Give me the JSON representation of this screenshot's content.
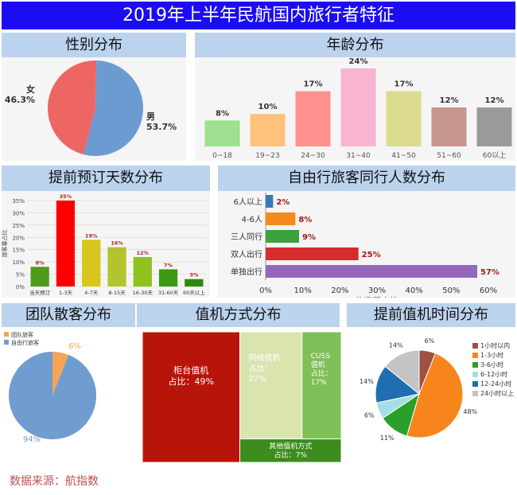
{
  "title": "2019年上半年民航国内旅行者特征",
  "source": "数据来源：航指数",
  "colors": {
    "title_bar": "#1c0cf2",
    "panel_header": "#bcd3ee"
  },
  "chart_data": [
    {
      "id": "gender",
      "panel_title": "性别分布",
      "type": "pie",
      "slices": [
        {
          "label": "女",
          "value": 46.3,
          "display": "46.3%",
          "color": "#ed6663"
        },
        {
          "label": "男",
          "value": 53.7,
          "display": "53.7%",
          "color": "#6c9bd2"
        }
      ]
    },
    {
      "id": "age",
      "panel_title": "年龄分布",
      "type": "bar",
      "categories": [
        "0~18",
        "19~23",
        "24~30",
        "31~40",
        "41~50",
        "51~60",
        "60以上"
      ],
      "values": [
        8,
        10,
        17,
        24,
        17,
        12,
        12
      ],
      "value_labels": [
        "8%",
        "10%",
        "17%",
        "24%",
        "17%",
        "12%",
        "12%"
      ],
      "colors": [
        "#9ee090",
        "#fec27a",
        "#ff9191",
        "#f8b4d1",
        "#dcdc8e",
        "#c7968c",
        "#9a9a9a"
      ]
    },
    {
      "id": "booking",
      "panel_title": "提前预订天数分布",
      "type": "bar",
      "ylabel": "旅客量占比",
      "ylim": [
        0,
        35
      ],
      "yticks": [
        "0%",
        "5%",
        "10%",
        "15%",
        "20%",
        "25%",
        "30%",
        "35%"
      ],
      "categories": [
        "当天预订",
        "1-3天",
        "4-7天",
        "8-15天",
        "16-30天",
        "31-60天",
        "60天以上"
      ],
      "values": [
        8,
        35,
        19,
        16,
        12,
        7,
        3
      ],
      "value_labels": [
        "8%",
        "35%",
        "19%",
        "16%",
        "12%",
        "7%",
        "3%"
      ],
      "colors": [
        "#4e9a1d",
        "#ff0000",
        "#d8c61c",
        "#b4c42c",
        "#8ec21e",
        "#3a9a14",
        "#2b8a0e"
      ]
    },
    {
      "id": "companions",
      "panel_title": "自由行旅客同行人数分布",
      "type": "bar",
      "orientation": "horizontal",
      "xlabel": "旅客量占比",
      "xlim": [
        0,
        60
      ],
      "xticks": [
        "0%",
        "10%",
        "20%",
        "30%",
        "40%",
        "50%",
        "60%"
      ],
      "categories": [
        "6人以上",
        "4-6人",
        "三人同行",
        "双人出行",
        "单独出行"
      ],
      "values": [
        2,
        8,
        9,
        25,
        57
      ],
      "value_labels": [
        "2%",
        "8%",
        "9%",
        "25%",
        "57%"
      ],
      "colors": [
        "#3a78b8",
        "#f6891f",
        "#3aa23a",
        "#d62c2c",
        "#9467bd"
      ]
    },
    {
      "id": "group",
      "panel_title": "团队散客分布",
      "type": "pie",
      "legend": [
        "团队旅客",
        "自由行旅客"
      ],
      "slices": [
        {
          "label": "团队旅客",
          "value": 6,
          "display": "6%",
          "color": "#f6a455"
        },
        {
          "label": "自由行旅客",
          "value": 94,
          "display": "94%",
          "color": "#6f9dcf"
        }
      ]
    },
    {
      "id": "checkin",
      "panel_title": "值机方式分布",
      "type": "treemap",
      "items": [
        {
          "name": "柜台值机",
          "share": "占比：49%",
          "value": 49,
          "color": "#b8150a",
          "text_color": "#ffffff"
        },
        {
          "name": "网络值机",
          "share": "占比：27%",
          "value": 27,
          "color": "#d9e4ae",
          "text_color": "#ffffff"
        },
        {
          "name": "CUSS值机",
          "share": "占比：17%",
          "value": 17,
          "color": "#7fbf58",
          "text_color": "#ffffff"
        },
        {
          "name": "其他值机方式",
          "share": "占比：7%",
          "value": 7,
          "color": "#3d8d1e",
          "text_color": "#ffffff"
        }
      ]
    },
    {
      "id": "advance_checkin",
      "panel_title": "提前值机时间分布",
      "type": "pie",
      "slices": [
        {
          "label": "1小时以内",
          "value": 6,
          "display": "6%",
          "color": "#9e5147"
        },
        {
          "label": "1-3小时",
          "value": 48,
          "display": "48%",
          "color": "#f7851b"
        },
        {
          "label": "3-6小时",
          "value": 11,
          "display": "11%",
          "color": "#2aa02a"
        },
        {
          "label": "6-12小时",
          "value": 6,
          "display": "6%",
          "color": "#a5dde6"
        },
        {
          "label": "12-24小时",
          "value": 14,
          "display": "14%",
          "color": "#1f6fb0"
        },
        {
          "label": "24小时以上",
          "value": 14,
          "display": "14%",
          "color": "#c4c4c4"
        }
      ]
    }
  ]
}
